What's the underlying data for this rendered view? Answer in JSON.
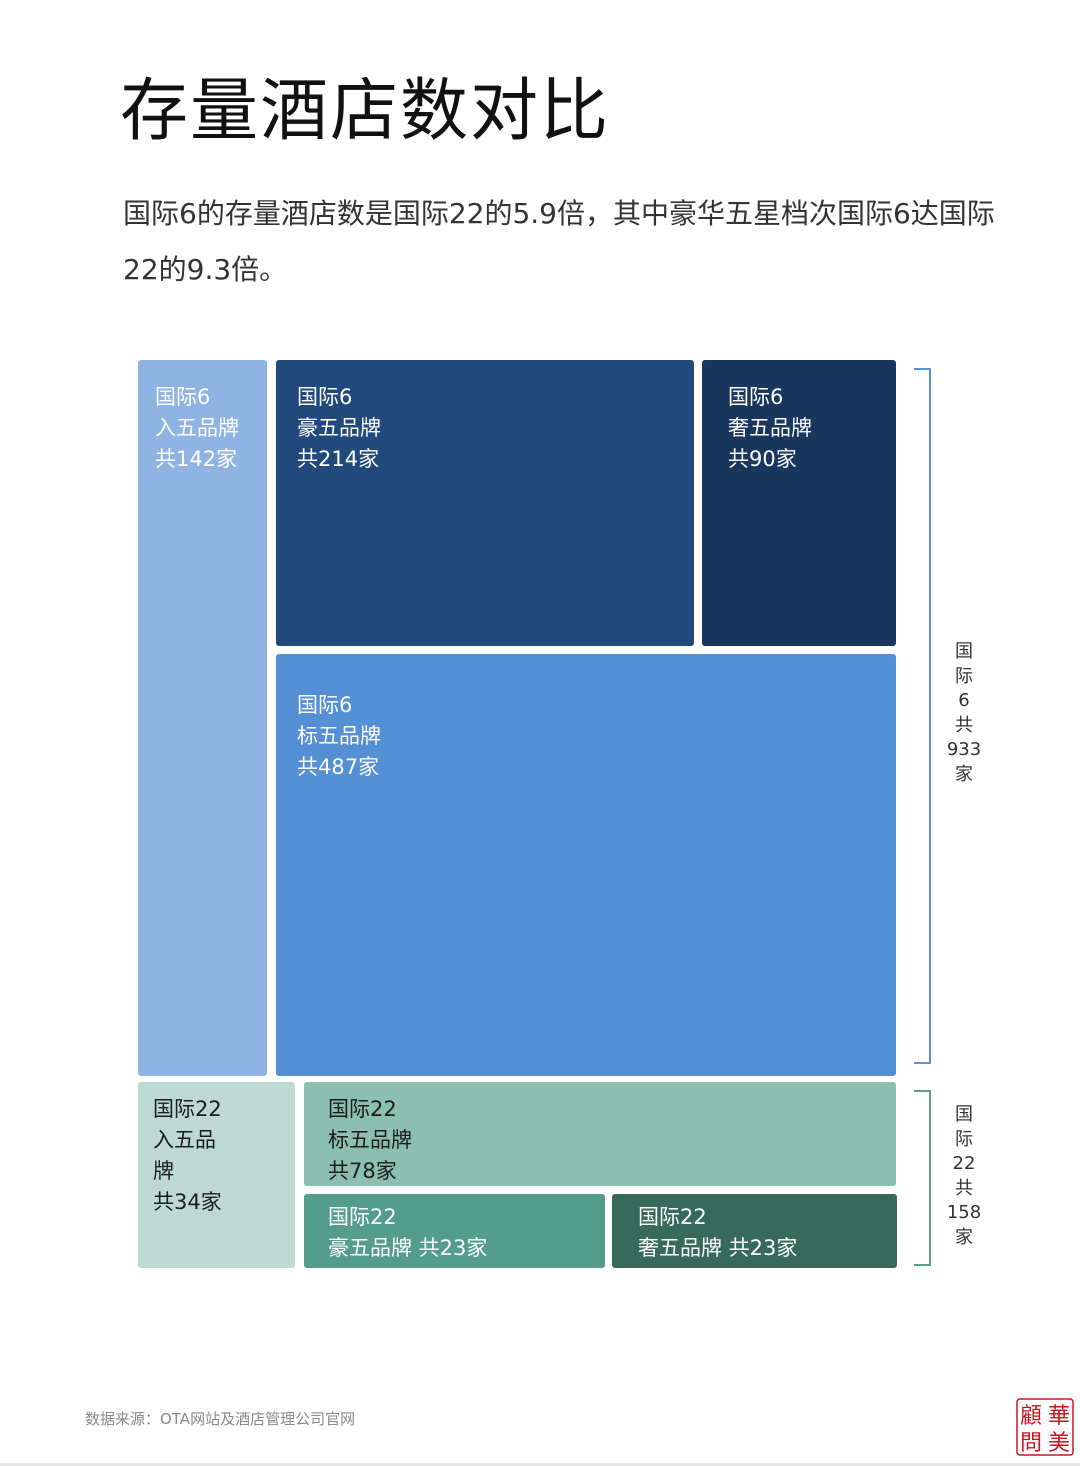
{
  "title": "存量酒店数对比",
  "subtitle": "国际6的存量酒店数是国际22的5.9倍，其中豪华五星档次国际6达国际22的9.3倍。",
  "chart_data": {
    "type": "treemap",
    "groups": [
      {
        "name": "国际6",
        "total": 933,
        "total_label": "国\n际\n6\n共\n933\n家",
        "cells": [
          {
            "label": "国际6\n入五品牌\n共142家",
            "value": 142,
            "color": "#8fb4e3"
          },
          {
            "label": "国际6\n豪五品牌\n共214家",
            "value": 214,
            "color": "#21497c"
          },
          {
            "label": "国际6\n奢五品牌\n共90家",
            "value": 90,
            "color": "#19375e"
          },
          {
            "label": "国际6\n标五品牌\n共487家",
            "value": 487,
            "color": "#558fd6"
          }
        ]
      },
      {
        "name": "国际22",
        "total": 158,
        "total_label": "国\n际\n22\n共\n158\n家",
        "cells": [
          {
            "label": "国际22\n入五品\n牌\n共34家",
            "value": 34,
            "color": "#bcdad3"
          },
          {
            "label": "国际22\n标五品牌\n共78家",
            "value": 78,
            "color": "#8bc0b1"
          },
          {
            "label": "国际22\n豪五品牌 共23家",
            "value": 23,
            "color": "#559d8b"
          },
          {
            "label": "国际22\n奢五品牌 共23家",
            "value": 23,
            "color": "#386a5b"
          }
        ]
      }
    ],
    "bracket_colors": [
      "#5b93d4",
      "#5a9e8a"
    ]
  },
  "source": "数据来源：OTA网站及酒店管理公司官网",
  "seal": {
    "chars": [
      "華",
      "顧",
      "美",
      "問"
    ],
    "color": "#c8161d"
  }
}
